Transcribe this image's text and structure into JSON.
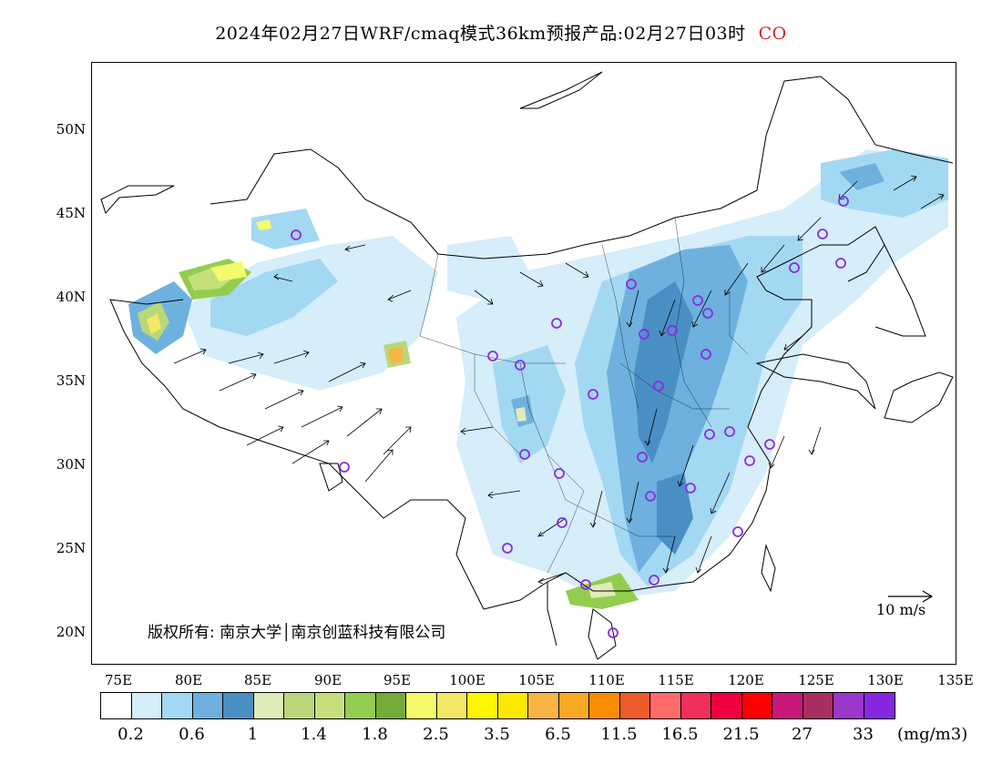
{
  "title": {
    "main": "2024年02月27日WRF/cmaq模式36km预报产品:02月27日03时",
    "species": "CO"
  },
  "axes": {
    "lat_labels": [
      "50N",
      "45N",
      "40N",
      "35N",
      "30N",
      "25N",
      "20N"
    ],
    "lon_labels": [
      "75E",
      "80E",
      "85E",
      "90E",
      "95E",
      "100E",
      "105E",
      "110E",
      "115E",
      "120E",
      "125E",
      "130E",
      "135E"
    ]
  },
  "copyright": "版权所有: 南京大学│南京创蓝科技有限公司",
  "wind_reference": {
    "label": "10 m/s",
    "icon": "right-arrow-icon"
  },
  "colorbar": {
    "colors": [
      "#ffffff",
      "#d6edfa",
      "#a3d8f3",
      "#6eb1de",
      "#4a8fc4",
      "#dfebb8",
      "#b9d77a",
      "#c5e07a",
      "#93cd4f",
      "#74ab38",
      "#f4fa6c",
      "#f2e866",
      "#fff700",
      "#fde800",
      "#f7b546",
      "#f9a825",
      "#fb8c00",
      "#ef5a2a",
      "#ff6b6b",
      "#f0305a",
      "#ef0040",
      "#ff0000",
      "#c8187a",
      "#a83060",
      "#9b37c9",
      "#8528e0"
    ],
    "labels": [
      "0.2",
      "0.6",
      "1",
      "1.4",
      "1.8",
      "2.5",
      "3.5",
      "6.5",
      "11.5",
      "16.5",
      "21.5",
      "27",
      "33"
    ],
    "unit": "(mg/m3)"
  },
  "map": {
    "background": "#ffffff",
    "marker_color": "#8a2be2",
    "arrow_color": "#000000"
  }
}
